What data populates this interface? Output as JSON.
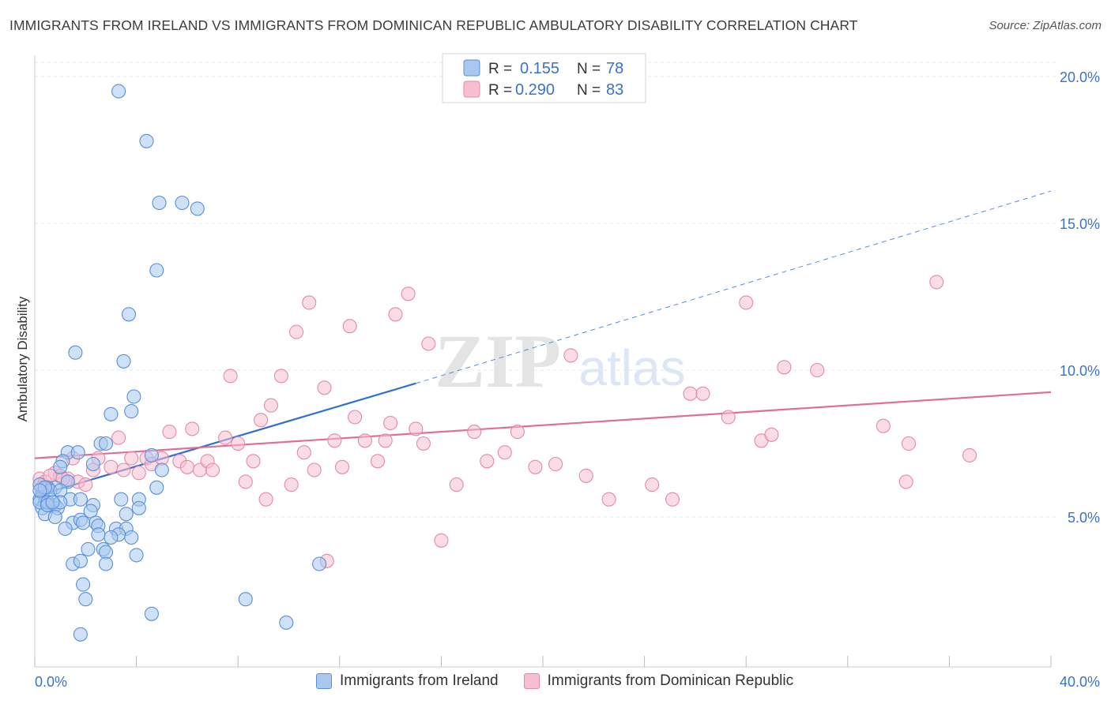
{
  "title": "IMMIGRANTS FROM IRELAND VS IMMIGRANTS FROM DOMINICAN REPUBLIC AMBULATORY DISABILITY CORRELATION CHART",
  "source": "Source: ZipAtlas.com",
  "watermark": {
    "zip": "ZIP",
    "atlas": "atlas"
  },
  "legend_top": [
    {
      "r_label": "R =",
      "r_value": "0.155",
      "n_label": "N =",
      "n_value": "78"
    },
    {
      "r_label": "R =",
      "r_value": "0.290",
      "n_label": "N =",
      "n_value": "83"
    }
  ],
  "chart_data": {
    "type": "scatter",
    "title": "IMMIGRANTS FROM IRELAND VS IMMIGRANTS FROM DOMINICAN REPUBLIC AMBULATORY DISABILITY CORRELATION CHART",
    "xlabel": "",
    "ylabel": "Ambulatory Disability",
    "xlim": [
      0,
      40
    ],
    "ylim": [
      0,
      20.5
    ],
    "x_tick_labels": [
      "0.0%",
      "40.0%"
    ],
    "y_ticks": [
      5,
      10,
      15,
      20
    ],
    "y_tick_labels": [
      "5.0%",
      "10.0%",
      "15.0%",
      "20.0%"
    ],
    "grid": true,
    "legend_position": "top-center",
    "colors": {
      "ireland_fill": "#a8c8f0",
      "ireland_stroke": "#5a8fd6",
      "ireland_line": "#2f6fcf",
      "dominican_fill": "#f6bfd0",
      "dominican_stroke": "#e48aa8",
      "dominican_line": "#e06e98",
      "axis_text": "#3a72c8"
    },
    "series": [
      {
        "name": "Immigrants from Ireland",
        "R": 0.155,
        "N": 78,
        "trend": {
          "x0": 0.0,
          "y0": 5.7,
          "x1": 15.0,
          "y1": 9.55,
          "dashed_to_x": 40.0,
          "dashed_to_y": 16.1
        },
        "points": [
          [
            3.3,
            19.5
          ],
          [
            4.4,
            17.8
          ],
          [
            4.9,
            15.7
          ],
          [
            5.8,
            15.7
          ],
          [
            6.4,
            15.5
          ],
          [
            4.8,
            13.4
          ],
          [
            3.7,
            11.9
          ],
          [
            1.6,
            10.6
          ],
          [
            3.5,
            10.3
          ],
          [
            3.9,
            9.1
          ],
          [
            3.8,
            8.6
          ],
          [
            3.0,
            8.5
          ],
          [
            1.3,
            7.2
          ],
          [
            1.7,
            7.2
          ],
          [
            2.6,
            7.5
          ],
          [
            2.8,
            7.5
          ],
          [
            4.6,
            7.1
          ],
          [
            2.3,
            6.8
          ],
          [
            1.1,
            6.9
          ],
          [
            1.0,
            6.7
          ],
          [
            5.0,
            6.6
          ],
          [
            1.3,
            6.2
          ],
          [
            0.8,
            6.0
          ],
          [
            0.5,
            6.0
          ],
          [
            0.3,
            5.8
          ],
          [
            0.6,
            5.9
          ],
          [
            1.0,
            5.9
          ],
          [
            0.2,
            5.6
          ],
          [
            0.4,
            5.5
          ],
          [
            0.6,
            5.4
          ],
          [
            0.8,
            5.4
          ],
          [
            1.4,
            5.6
          ],
          [
            1.8,
            5.6
          ],
          [
            0.3,
            5.3
          ],
          [
            0.9,
            5.3
          ],
          [
            2.3,
            5.4
          ],
          [
            3.4,
            5.6
          ],
          [
            4.1,
            5.6
          ],
          [
            4.8,
            6.0
          ],
          [
            0.4,
            5.1
          ],
          [
            0.8,
            5.0
          ],
          [
            2.2,
            5.2
          ],
          [
            4.1,
            5.3
          ],
          [
            3.6,
            5.1
          ],
          [
            1.5,
            4.8
          ],
          [
            1.8,
            4.9
          ],
          [
            2.4,
            4.8
          ],
          [
            2.5,
            4.7
          ],
          [
            1.2,
            4.6
          ],
          [
            1.9,
            4.8
          ],
          [
            3.2,
            4.6
          ],
          [
            3.6,
            4.6
          ],
          [
            3.3,
            4.4
          ],
          [
            2.5,
            4.4
          ],
          [
            3.0,
            4.3
          ],
          [
            3.8,
            4.3
          ],
          [
            2.1,
            3.9
          ],
          [
            2.7,
            3.9
          ],
          [
            2.8,
            3.8
          ],
          [
            4.0,
            3.7
          ],
          [
            1.5,
            3.4
          ],
          [
            1.8,
            3.5
          ],
          [
            2.8,
            3.4
          ],
          [
            11.2,
            3.4
          ],
          [
            1.9,
            2.7
          ],
          [
            2.0,
            2.2
          ],
          [
            4.6,
            1.7
          ],
          [
            8.3,
            2.2
          ],
          [
            9.9,
            1.4
          ],
          [
            1.8,
            1.0
          ],
          [
            0.2,
            5.5
          ],
          [
            0.5,
            5.5
          ],
          [
            1.0,
            5.5
          ],
          [
            0.2,
            6.1
          ],
          [
            0.4,
            6.0
          ],
          [
            0.2,
            5.9
          ],
          [
            0.5,
            5.4
          ],
          [
            0.7,
            5.5
          ]
        ]
      },
      {
        "name": "Immigrants from Dominican Republic",
        "R": 0.29,
        "N": 83,
        "trend": {
          "x0": 0.0,
          "y0": 7.0,
          "x1": 40.0,
          "y1": 9.25
        },
        "points": [
          [
            0.2,
            6.3
          ],
          [
            0.4,
            6.2
          ],
          [
            0.3,
            6.0
          ],
          [
            0.8,
            6.5
          ],
          [
            1.0,
            6.4
          ],
          [
            1.3,
            6.3
          ],
          [
            1.5,
            7.0
          ],
          [
            1.7,
            6.2
          ],
          [
            2.0,
            6.1
          ],
          [
            2.3,
            6.6
          ],
          [
            2.5,
            7.0
          ],
          [
            3.0,
            6.7
          ],
          [
            3.3,
            7.7
          ],
          [
            3.5,
            6.6
          ],
          [
            3.8,
            7.0
          ],
          [
            4.1,
            6.5
          ],
          [
            4.4,
            7.0
          ],
          [
            4.6,
            6.8
          ],
          [
            5.0,
            7.0
          ],
          [
            5.3,
            7.9
          ],
          [
            5.7,
            6.9
          ],
          [
            6.0,
            6.7
          ],
          [
            6.2,
            8.0
          ],
          [
            6.5,
            6.6
          ],
          [
            6.8,
            6.9
          ],
          [
            7.0,
            6.6
          ],
          [
            7.5,
            7.7
          ],
          [
            7.7,
            9.8
          ],
          [
            8.0,
            7.5
          ],
          [
            8.3,
            6.2
          ],
          [
            8.6,
            6.9
          ],
          [
            8.9,
            8.3
          ],
          [
            9.1,
            5.6
          ],
          [
            9.3,
            8.8
          ],
          [
            9.7,
            9.8
          ],
          [
            10.1,
            6.1
          ],
          [
            10.3,
            11.3
          ],
          [
            10.6,
            7.2
          ],
          [
            10.8,
            12.3
          ],
          [
            11.0,
            6.6
          ],
          [
            11.4,
            9.4
          ],
          [
            11.5,
            3.5
          ],
          [
            11.8,
            7.6
          ],
          [
            12.1,
            6.7
          ],
          [
            12.4,
            11.5
          ],
          [
            12.6,
            8.4
          ],
          [
            13.0,
            7.6
          ],
          [
            13.5,
            6.9
          ],
          [
            13.8,
            7.6
          ],
          [
            14.0,
            8.2
          ],
          [
            14.2,
            11.9
          ],
          [
            14.7,
            12.6
          ],
          [
            15.0,
            8.0
          ],
          [
            15.3,
            7.5
          ],
          [
            15.5,
            10.9
          ],
          [
            16.0,
            4.2
          ],
          [
            16.6,
            6.1
          ],
          [
            17.3,
            7.9
          ],
          [
            17.8,
            6.9
          ],
          [
            18.5,
            7.2
          ],
          [
            19.0,
            7.9
          ],
          [
            19.7,
            6.7
          ],
          [
            20.5,
            6.8
          ],
          [
            21.1,
            10.5
          ],
          [
            21.7,
            6.4
          ],
          [
            22.6,
            5.6
          ],
          [
            24.3,
            6.1
          ],
          [
            25.1,
            5.6
          ],
          [
            25.8,
            9.2
          ],
          [
            26.3,
            9.2
          ],
          [
            27.3,
            8.4
          ],
          [
            28.0,
            12.3
          ],
          [
            28.6,
            7.6
          ],
          [
            29.0,
            7.8
          ],
          [
            29.5,
            10.1
          ],
          [
            30.8,
            10.0
          ],
          [
            33.4,
            8.1
          ],
          [
            34.4,
            7.5
          ],
          [
            34.3,
            6.2
          ],
          [
            35.5,
            13.0
          ],
          [
            36.8,
            7.1
          ],
          [
            0.6,
            6.4
          ],
          [
            1.1,
            6.3
          ]
        ]
      }
    ]
  }
}
